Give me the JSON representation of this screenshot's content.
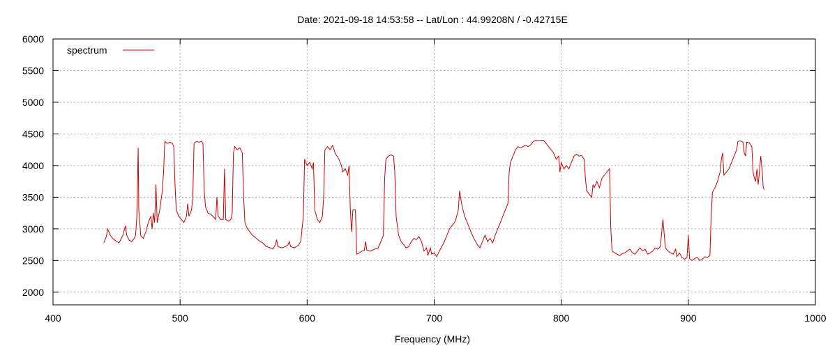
{
  "chart_data": {
    "type": "line",
    "title": "Date: 2021-09-18 14:53:58  --  Lat/Lon : 44.99208N / -0.42715E",
    "xlabel": "Frequency (MHz)",
    "ylabel": "",
    "xlim": [
      400,
      1000
    ],
    "ylim": [
      1800,
      6000
    ],
    "xticks": [
      400,
      500,
      600,
      700,
      800,
      900,
      1000
    ],
    "yticks": [
      2000,
      2500,
      3000,
      3500,
      4000,
      4500,
      5000,
      5500,
      6000
    ],
    "grid": true,
    "legend": "top-left",
    "series_color": "#cc0000",
    "series": [
      {
        "name": "spectrum",
        "points": [
          [
            440,
            2780
          ],
          [
            442,
            2880
          ],
          [
            443,
            3000
          ],
          [
            445,
            2900
          ],
          [
            447,
            2850
          ],
          [
            450,
            2800
          ],
          [
            452,
            2780
          ],
          [
            455,
            2900
          ],
          [
            457,
            3050
          ],
          [
            458,
            2900
          ],
          [
            460,
            2820
          ],
          [
            462,
            2800
          ],
          [
            464,
            2850
          ],
          [
            465,
            2900
          ],
          [
            466,
            3200
          ],
          [
            467,
            4280
          ],
          [
            467.5,
            3300
          ],
          [
            469,
            2900
          ],
          [
            471,
            2850
          ],
          [
            473,
            2950
          ],
          [
            475,
            3100
          ],
          [
            477,
            3200
          ],
          [
            478,
            3000
          ],
          [
            479,
            3250
          ],
          [
            480,
            3100
          ],
          [
            481,
            3700
          ],
          [
            482,
            3100
          ],
          [
            484,
            3300
          ],
          [
            486,
            3600
          ],
          [
            487,
            3900
          ],
          [
            488,
            4380
          ],
          [
            490,
            4350
          ],
          [
            492,
            4370
          ],
          [
            494,
            4350
          ],
          [
            495,
            4300
          ],
          [
            496,
            3700
          ],
          [
            497,
            3300
          ],
          [
            499,
            3200
          ],
          [
            501,
            3150
          ],
          [
            503,
            3100
          ],
          [
            505,
            3200
          ],
          [
            506,
            3400
          ],
          [
            507,
            3200
          ],
          [
            509,
            3300
          ],
          [
            510,
            3500
          ],
          [
            511,
            4350
          ],
          [
            513,
            4380
          ],
          [
            515,
            4370
          ],
          [
            517,
            4380
          ],
          [
            518,
            4350
          ],
          [
            519,
            3600
          ],
          [
            520,
            3350
          ],
          [
            522,
            3250
          ],
          [
            524,
            3230
          ],
          [
            526,
            3200
          ],
          [
            528,
            3150
          ],
          [
            529,
            3500
          ],
          [
            530,
            3200
          ],
          [
            532,
            3150
          ],
          [
            534,
            3150
          ],
          [
            535,
            3950
          ],
          [
            536,
            3150
          ],
          [
            538,
            3120
          ],
          [
            540,
            3150
          ],
          [
            541,
            3250
          ],
          [
            542,
            4200
          ],
          [
            543,
            4300
          ],
          [
            545,
            4250
          ],
          [
            547,
            4280
          ],
          [
            549,
            4200
          ],
          [
            550,
            3500
          ],
          [
            551,
            3100
          ],
          [
            553,
            3000
          ],
          [
            555,
            2950
          ],
          [
            557,
            2900
          ],
          [
            560,
            2850
          ],
          [
            563,
            2800
          ],
          [
            565,
            2780
          ],
          [
            568,
            2720
          ],
          [
            571,
            2700
          ],
          [
            573,
            2680
          ],
          [
            575,
            2750
          ],
          [
            576,
            2830
          ],
          [
            577,
            2720
          ],
          [
            580,
            2700
          ],
          [
            583,
            2720
          ],
          [
            585,
            2750
          ],
          [
            586,
            2800
          ],
          [
            587,
            2720
          ],
          [
            590,
            2700
          ],
          [
            593,
            2740
          ],
          [
            595,
            2800
          ],
          [
            597,
            3200
          ],
          [
            598,
            4100
          ],
          [
            600,
            4000
          ],
          [
            602,
            4050
          ],
          [
            604,
            3950
          ],
          [
            605,
            4050
          ],
          [
            606,
            3300
          ],
          [
            608,
            3150
          ],
          [
            610,
            3100
          ],
          [
            612,
            3200
          ],
          [
            613,
            3500
          ],
          [
            614,
            4250
          ],
          [
            616,
            4300
          ],
          [
            618,
            4250
          ],
          [
            620,
            4320
          ],
          [
            622,
            4200
          ],
          [
            625,
            4100
          ],
          [
            627,
            4000
          ],
          [
            628,
            3900
          ],
          [
            630,
            3950
          ],
          [
            632,
            3850
          ],
          [
            633,
            4000
          ],
          [
            634,
            3300
          ],
          [
            635,
            2950
          ],
          [
            636,
            3300
          ],
          [
            638,
            3300
          ],
          [
            639,
            2600
          ],
          [
            641,
            2620
          ],
          [
            643,
            2650
          ],
          [
            645,
            2660
          ],
          [
            646,
            2800
          ],
          [
            647,
            2660
          ],
          [
            650,
            2650
          ],
          [
            653,
            2680
          ],
          [
            656,
            2700
          ],
          [
            658,
            2800
          ],
          [
            660,
            2900
          ],
          [
            661,
            3800
          ],
          [
            662,
            4100
          ],
          [
            664,
            4150
          ],
          [
            666,
            4170
          ],
          [
            668,
            4150
          ],
          [
            669,
            3900
          ],
          [
            670,
            3200
          ],
          [
            672,
            2900
          ],
          [
            674,
            2800
          ],
          [
            676,
            2750
          ],
          [
            678,
            2700
          ],
          [
            680,
            2720
          ],
          [
            682,
            2800
          ],
          [
            684,
            2850
          ],
          [
            686,
            2830
          ],
          [
            688,
            2880
          ],
          [
            690,
            2800
          ],
          [
            692,
            2650
          ],
          [
            694,
            2700
          ],
          [
            695,
            2580
          ],
          [
            697,
            2700
          ],
          [
            698,
            2600
          ],
          [
            700,
            2620
          ],
          [
            702,
            2560
          ],
          [
            704,
            2650
          ],
          [
            706,
            2720
          ],
          [
            708,
            2800
          ],
          [
            710,
            2900
          ],
          [
            712,
            3000
          ],
          [
            714,
            3050
          ],
          [
            716,
            3100
          ],
          [
            717,
            3150
          ],
          [
            719,
            3300
          ],
          [
            720,
            3600
          ],
          [
            722,
            3350
          ],
          [
            724,
            3200
          ],
          [
            726,
            3100
          ],
          [
            728,
            3000
          ],
          [
            730,
            2900
          ],
          [
            732,
            2820
          ],
          [
            734,
            2750
          ],
          [
            736,
            2700
          ],
          [
            738,
            2800
          ],
          [
            740,
            2900
          ],
          [
            742,
            2800
          ],
          [
            744,
            2850
          ],
          [
            746,
            2780
          ],
          [
            748,
            2900
          ],
          [
            750,
            3000
          ],
          [
            752,
            3100
          ],
          [
            754,
            3200
          ],
          [
            756,
            3300
          ],
          [
            758,
            3400
          ],
          [
            759,
            3900
          ],
          [
            760,
            4050
          ],
          [
            762,
            4150
          ],
          [
            764,
            4250
          ],
          [
            766,
            4300
          ],
          [
            768,
            4280
          ],
          [
            770,
            4300
          ],
          [
            772,
            4320
          ],
          [
            774,
            4300
          ],
          [
            776,
            4330
          ],
          [
            778,
            4380
          ],
          [
            780,
            4400
          ],
          [
            782,
            4390
          ],
          [
            784,
            4400
          ],
          [
            786,
            4400
          ],
          [
            788,
            4350
          ],
          [
            790,
            4300
          ],
          [
            792,
            4250
          ],
          [
            794,
            4200
          ],
          [
            796,
            4100
          ],
          [
            798,
            4150
          ],
          [
            799,
            3900
          ],
          [
            800,
            4050
          ],
          [
            802,
            3950
          ],
          [
            804,
            4000
          ],
          [
            806,
            3950
          ],
          [
            808,
            4050
          ],
          [
            810,
            4150
          ],
          [
            812,
            4180
          ],
          [
            814,
            4150
          ],
          [
            816,
            4160
          ],
          [
            818,
            4100
          ],
          [
            819,
            3800
          ],
          [
            820,
            3600
          ],
          [
            822,
            3550
          ],
          [
            824,
            3500
          ],
          [
            825,
            3700
          ],
          [
            826,
            3650
          ],
          [
            828,
            3750
          ],
          [
            830,
            3650
          ],
          [
            832,
            3800
          ],
          [
            834,
            3850
          ],
          [
            836,
            3900
          ],
          [
            838,
            3950
          ],
          [
            839,
            3000
          ],
          [
            840,
            2650
          ],
          [
            842,
            2620
          ],
          [
            844,
            2600
          ],
          [
            846,
            2580
          ],
          [
            848,
            2610
          ],
          [
            850,
            2620
          ],
          [
            852,
            2650
          ],
          [
            854,
            2680
          ],
          [
            856,
            2620
          ],
          [
            858,
            2600
          ],
          [
            860,
            2650
          ],
          [
            862,
            2700
          ],
          [
            864,
            2650
          ],
          [
            866,
            2680
          ],
          [
            868,
            2600
          ],
          [
            870,
            2620
          ],
          [
            872,
            2650
          ],
          [
            874,
            2700
          ],
          [
            876,
            2680
          ],
          [
            878,
            2720
          ],
          [
            880,
            3150
          ],
          [
            882,
            2700
          ],
          [
            884,
            2650
          ],
          [
            886,
            2620
          ],
          [
            888,
            2600
          ],
          [
            890,
            2680
          ],
          [
            891,
            2560
          ],
          [
            893,
            2620
          ],
          [
            895,
            2550
          ],
          [
            897,
            2520
          ],
          [
            899,
            2550
          ],
          [
            900,
            2900
          ],
          [
            901,
            2530
          ],
          [
            903,
            2500
          ],
          [
            905,
            2530
          ],
          [
            907,
            2550
          ],
          [
            909,
            2500
          ],
          [
            911,
            2520
          ],
          [
            913,
            2560
          ],
          [
            915,
            2550
          ],
          [
            917,
            2580
          ],
          [
            918,
            3200
          ],
          [
            919,
            3580
          ],
          [
            921,
            3650
          ],
          [
            923,
            3750
          ],
          [
            925,
            3900
          ],
          [
            926,
            4100
          ],
          [
            927,
            4200
          ],
          [
            928,
            3850
          ],
          [
            930,
            3900
          ],
          [
            932,
            3950
          ],
          [
            934,
            4050
          ],
          [
            936,
            4150
          ],
          [
            938,
            4250
          ],
          [
            939,
            4380
          ],
          [
            941,
            4390
          ],
          [
            943,
            4370
          ],
          [
            944,
            4200
          ],
          [
            945,
            4150
          ],
          [
            946,
            4370
          ],
          [
            948,
            4360
          ],
          [
            950,
            4300
          ],
          [
            951,
            3900
          ],
          [
            952,
            3800
          ],
          [
            953,
            3750
          ],
          [
            954,
            3950
          ],
          [
            955,
            3700
          ],
          [
            956,
            3900
          ],
          [
            957,
            4150
          ],
          [
            958,
            3950
          ],
          [
            959,
            3650
          ],
          [
            960,
            3620
          ]
        ]
      }
    ]
  }
}
